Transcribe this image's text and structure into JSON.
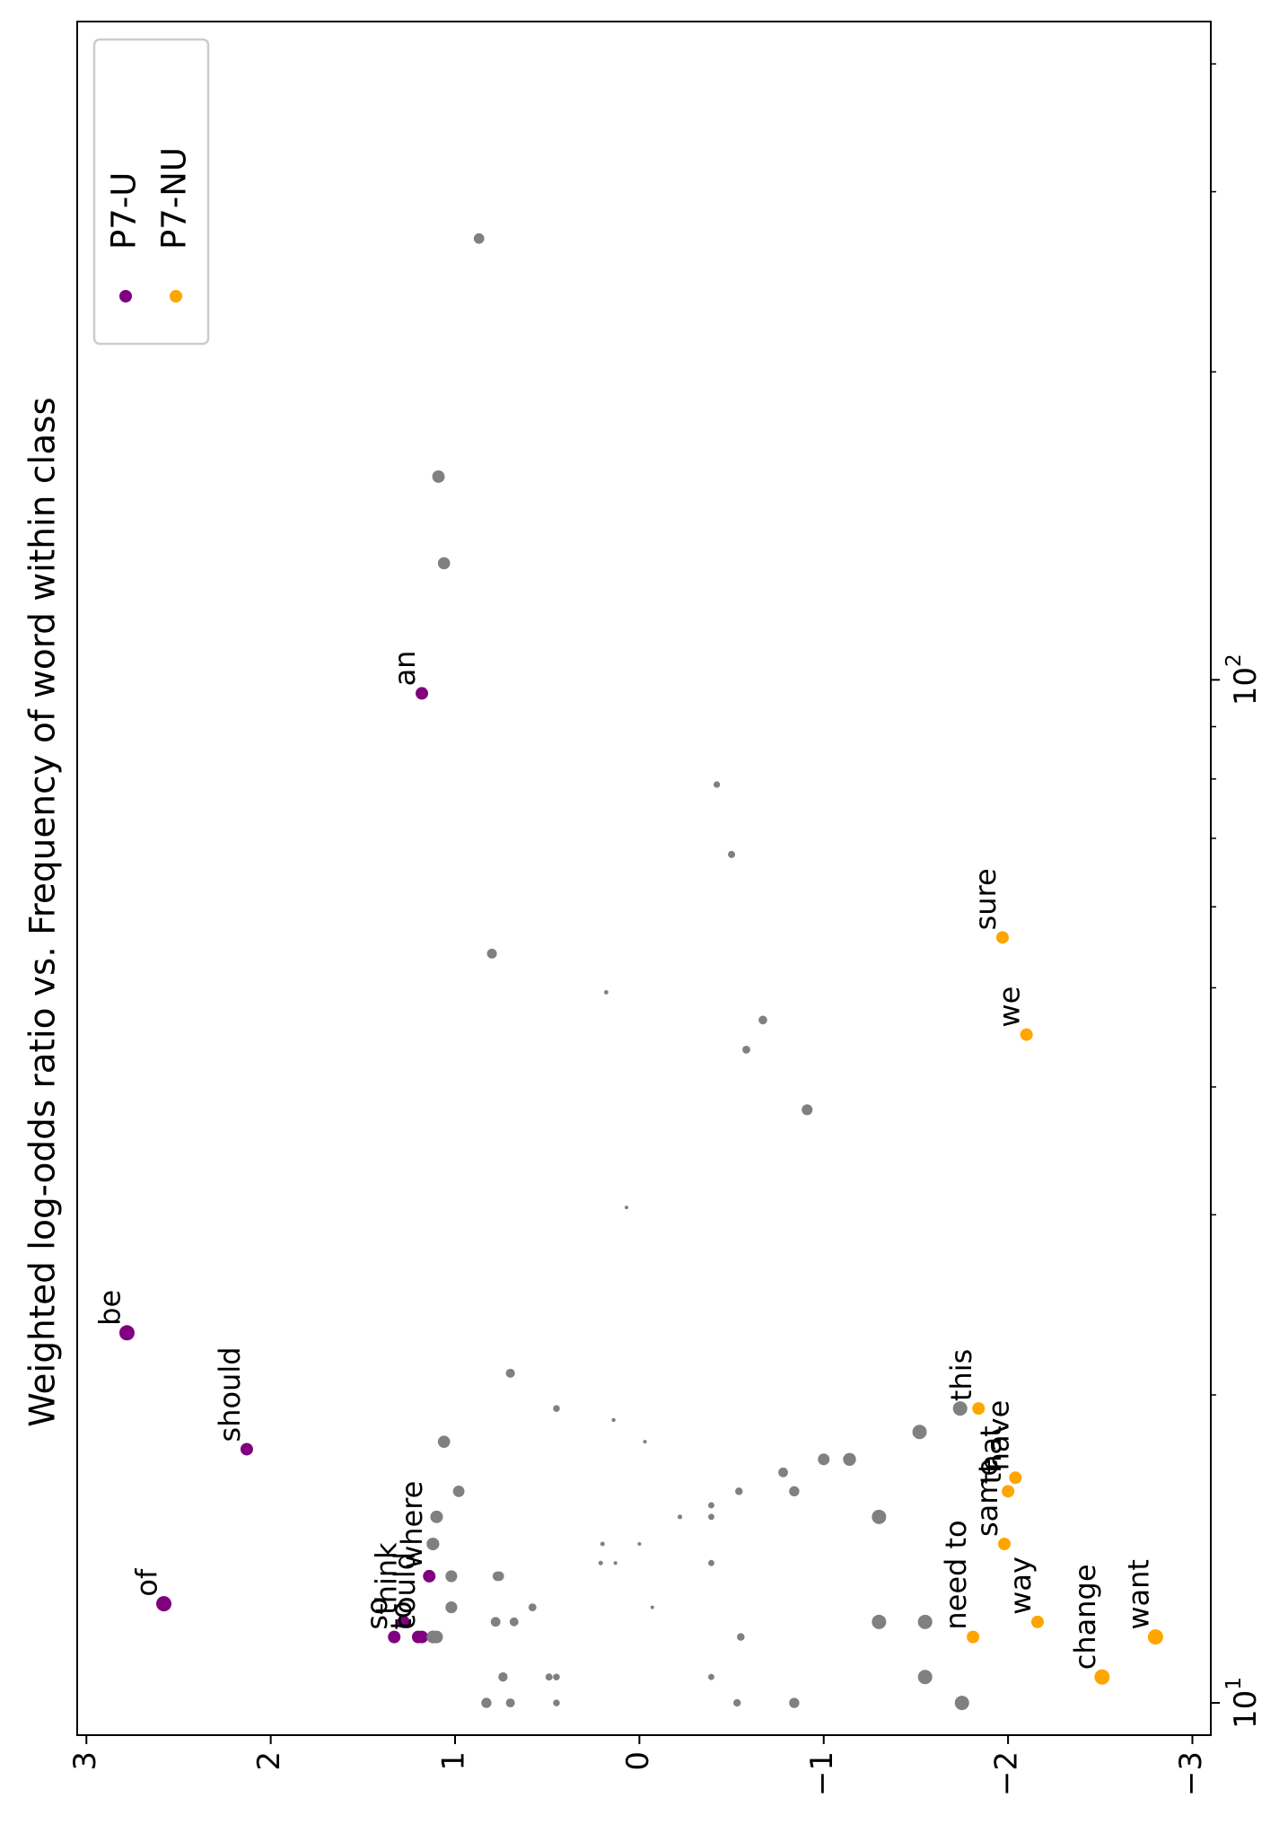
{
  "chart_data": {
    "type": "scatter",
    "orientation": "rotated-90-ccw",
    "title": "Weighted log-odds ratio vs. Frequency of word within class",
    "xlabel": "",
    "ylabel": "",
    "xscale": "log",
    "xlim": [
      9.3,
      440
    ],
    "ylim": [
      -3.1,
      3.05
    ],
    "x_major_ticks": [
      {
        "value": 10,
        "base": "10",
        "exp": "1"
      },
      {
        "value": 100,
        "base": "10",
        "exp": "2"
      }
    ],
    "x_minor_ticks": [
      20,
      30,
      40,
      50,
      60,
      70,
      80,
      90,
      200,
      300,
      400
    ],
    "y_ticks": [
      3,
      2,
      1,
      0,
      -1,
      -2,
      -3
    ],
    "y_tick_labels": [
      "3",
      "2",
      "1",
      "0",
      "−1",
      "−2",
      "−3"
    ],
    "legend": {
      "position": "top-right",
      "entries": [
        {
          "label": "P7-U",
          "color": "#800080"
        },
        {
          "label": "P7-NU",
          "color": "#FFA500"
        }
      ]
    },
    "colors": {
      "grey": "#808080",
      "P7-U": "#800080",
      "P7-NU": "#FFA500"
    },
    "series": [
      {
        "name": "P7-U",
        "color": "#800080",
        "points": [
          {
            "word": "be",
            "x": 23,
            "y": 2.78
          },
          {
            "word": "should",
            "x": 17.7,
            "y": 2.13
          },
          {
            "word": "of",
            "x": 12.5,
            "y": 2.58
          },
          {
            "word": "where",
            "x": 13.3,
            "y": 1.14
          },
          {
            "word": "so",
            "x": 11.6,
            "y": 1.33
          },
          {
            "word": "think",
            "x": 12.0,
            "y": 1.28
          },
          {
            "word": "could",
            "x": 11.6,
            "y": 1.18
          },
          {
            "word": "to",
            "x": 11.6,
            "y": 1.2
          },
          {
            "word": "an",
            "x": 97,
            "y": 1.18
          }
        ]
      },
      {
        "name": "P7-NU",
        "color": "#FFA500",
        "points": [
          {
            "word": "sure",
            "x": 56,
            "y": -1.97
          },
          {
            "word": "we",
            "x": 45,
            "y": -2.1
          },
          {
            "word": "this",
            "x": 19.4,
            "y": -1.84
          },
          {
            "word": "have",
            "x": 16.6,
            "y": -2.04
          },
          {
            "word": "that",
            "x": 16.1,
            "y": -2.0
          },
          {
            "word": "same",
            "x": 14.3,
            "y": -1.98
          },
          {
            "word": "need to",
            "x": 11.6,
            "y": -1.81
          },
          {
            "word": "way",
            "x": 12.0,
            "y": -2.16
          },
          {
            "word": "change",
            "x": 10.6,
            "y": -2.51
          },
          {
            "word": "want",
            "x": 11.6,
            "y": -2.8
          }
        ]
      },
      {
        "name": "other",
        "color": "#808080",
        "points": [
          {
            "x": 10.0,
            "y": 0.83
          },
          {
            "x": 10.0,
            "y": 0.7
          },
          {
            "x": 10.0,
            "y": 0.45
          },
          {
            "x": 10.0,
            "y": -0.53
          },
          {
            "x": 10.0,
            "y": -0.84
          },
          {
            "x": 10.0,
            "y": -1.75
          },
          {
            "x": 10.6,
            "y": 0.74
          },
          {
            "x": 10.6,
            "y": 0.49
          },
          {
            "x": 10.6,
            "y": 0.45
          },
          {
            "x": 10.6,
            "y": -0.39
          },
          {
            "x": 10.6,
            "y": -1.55
          },
          {
            "x": 11.6,
            "y": 1.12
          },
          {
            "x": 11.6,
            "y": 1.1
          },
          {
            "x": 11.6,
            "y": -0.55
          },
          {
            "x": 12.0,
            "y": 0.78
          },
          {
            "x": 12.0,
            "y": 0.68
          },
          {
            "x": 12.0,
            "y": -1.3
          },
          {
            "x": 12.0,
            "y": -1.55
          },
          {
            "x": 12.4,
            "y": 1.02
          },
          {
            "x": 12.4,
            "y": 0.58
          },
          {
            "x": 12.4,
            "y": -0.07
          },
          {
            "x": 13.3,
            "y": 1.02
          },
          {
            "x": 13.3,
            "y": 0.76
          },
          {
            "x": 13.3,
            "y": 0.77
          },
          {
            "x": 13.7,
            "y": 0.21
          },
          {
            "x": 13.7,
            "y": 0.13
          },
          {
            "x": 13.7,
            "y": -0.39
          },
          {
            "x": 14.3,
            "y": 1.12
          },
          {
            "x": 14.3,
            "y": 0.2
          },
          {
            "x": 14.3,
            "y": 0.0
          },
          {
            "x": 15.2,
            "y": 1.1
          },
          {
            "x": 15.2,
            "y": -0.22
          },
          {
            "x": 15.2,
            "y": -0.39
          },
          {
            "x": 15.2,
            "y": -1.3
          },
          {
            "x": 15.6,
            "y": -0.39
          },
          {
            "x": 16.1,
            "y": 0.98
          },
          {
            "x": 16.1,
            "y": -0.54
          },
          {
            "x": 16.1,
            "y": -0.84
          },
          {
            "x": 16.8,
            "y": -0.78
          },
          {
            "x": 17.3,
            "y": -1.0
          },
          {
            "x": 17.3,
            "y": -1.14
          },
          {
            "x": 18.0,
            "y": 1.06
          },
          {
            "x": 18.0,
            "y": -0.03
          },
          {
            "x": 18.4,
            "y": -1.52
          },
          {
            "x": 18.9,
            "y": 0.14
          },
          {
            "x": 19.4,
            "y": 0.45
          },
          {
            "x": 19.4,
            "y": -1.74
          },
          {
            "x": 21.0,
            "y": 0.7
          },
          {
            "x": 30.5,
            "y": 0.07
          },
          {
            "x": 38,
            "y": -0.91
          },
          {
            "x": 43.5,
            "y": -0.58
          },
          {
            "x": 46.5,
            "y": -0.67
          },
          {
            "x": 49.5,
            "y": 0.18
          },
          {
            "x": 54,
            "y": 0.8
          },
          {
            "x": 67.5,
            "y": -0.5
          },
          {
            "x": 79,
            "y": -0.42
          },
          {
            "x": 130,
            "y": 1.06
          },
          {
            "x": 158,
            "y": 1.09
          },
          {
            "x": 270,
            "y": 0.87
          }
        ]
      }
    ]
  }
}
